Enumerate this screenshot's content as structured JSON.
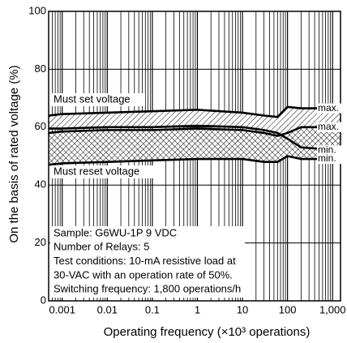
{
  "chart_data": {
    "type": "band",
    "x_label": "Operating frequency (×10³ operations)",
    "y_label": "On the basis of rated voltage (%)",
    "xlim": [
      0.0005,
      1500
    ],
    "ylim": [
      0,
      100
    ],
    "log_x": true,
    "grid": true,
    "xticks": [
      0.001,
      0.01,
      0.1,
      1,
      10,
      100,
      {
        "value": 1000,
        "label": "1,000"
      }
    ],
    "yticks": [
      0,
      20,
      40,
      60,
      80,
      100
    ],
    "x": [
      0.0005,
      0.001,
      0.01,
      0.1,
      1,
      10,
      30,
      60,
      100,
      200,
      1500
    ],
    "bands": [
      {
        "label": "Must set voltage",
        "max_label": "max.",
        "min_label": "min.",
        "color": "#000000",
        "max": [
          64,
          64.5,
          65,
          65.5,
          66,
          65,
          64,
          63.5,
          67,
          66.5,
          66.5
        ],
        "min": [
          59.5,
          59.5,
          60,
          60,
          60.5,
          60,
          59,
          58,
          56,
          53,
          52
        ]
      },
      {
        "label": "Must reset voltage",
        "max_label": "max.",
        "min_label": "min.",
        "color": "#000000",
        "max": [
          58,
          58.5,
          59,
          59,
          59.5,
          59,
          58,
          57,
          58,
          60,
          60
        ],
        "min": [
          47,
          47.5,
          48,
          48.5,
          49,
          49,
          48,
          48,
          50,
          49,
          49
        ]
      }
    ],
    "notes": [
      "Sample: G6WU-1P  9 VDC",
      "Number of Relays: 5",
      "Test conditions: 10-mA resistive load at",
      "30-VAC with an operation rate of 50%.",
      "Switching frequency: 1,800 operations/h"
    ]
  }
}
